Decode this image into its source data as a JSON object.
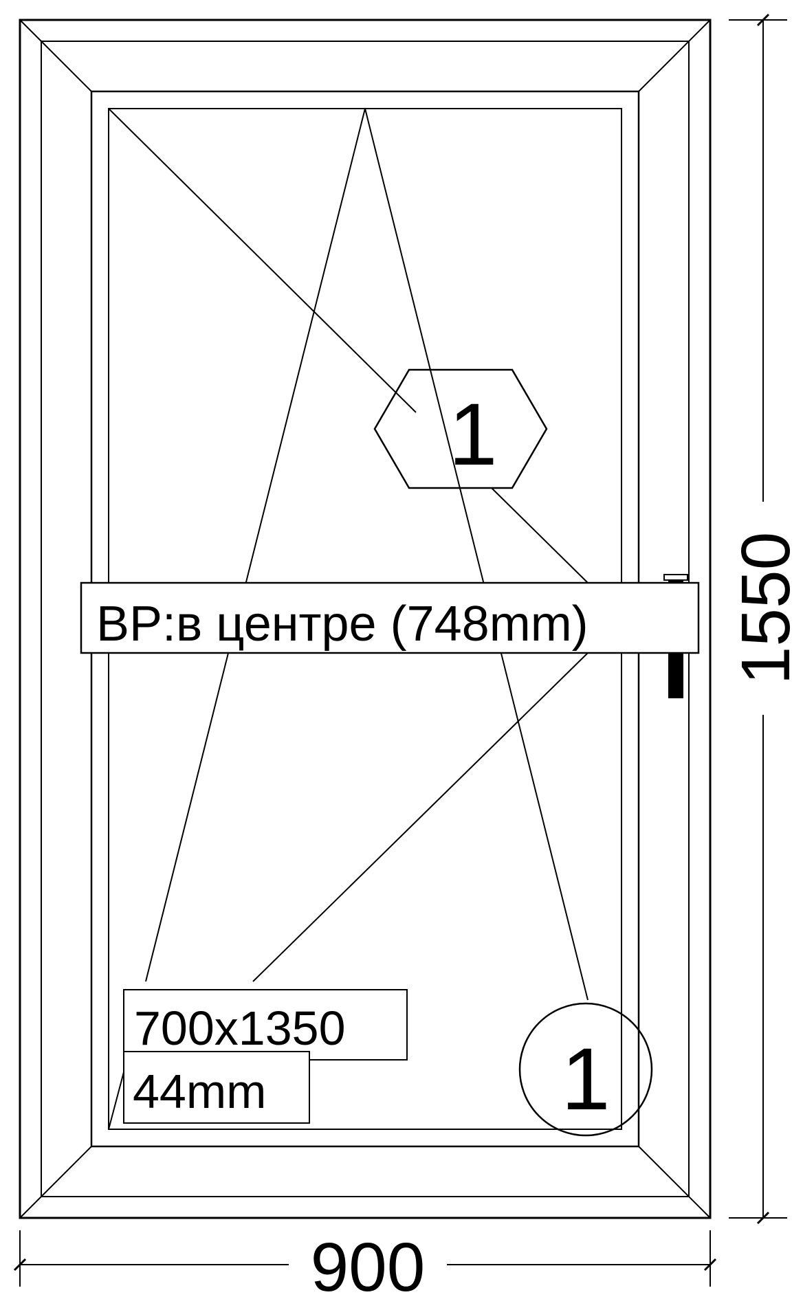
{
  "drawing": {
    "opening_height_label": "BP:в центре (748mm)",
    "sash_size_label": "700x1350",
    "glass_thickness_label": "44mm",
    "sash_number_hex": "1",
    "glass_number_circle": "1",
    "width_dimension": "900",
    "height_dimension": "1550"
  },
  "colors": {
    "stroke": "#000000",
    "background": "#ffffff"
  }
}
